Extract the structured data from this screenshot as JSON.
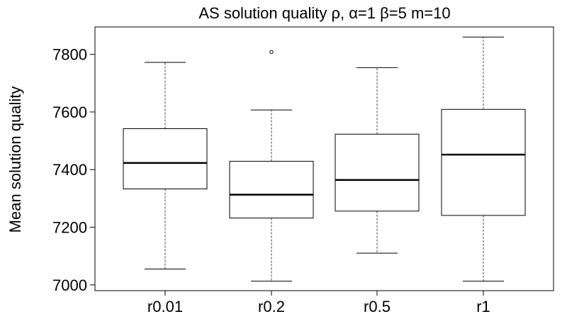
{
  "chart_data": {
    "type": "boxplot",
    "title": "AS solution quality ρ, α=1 β=5 m=10",
    "xlabel": "",
    "ylabel": "Mean solution quality",
    "ylim": [
      6980,
      7895
    ],
    "y_ticks": [
      7000,
      7200,
      7400,
      7600,
      7800
    ],
    "categories": [
      "r0.01",
      "r0.2",
      "r0.5",
      "r1"
    ],
    "boxes": [
      {
        "label": "r0.01",
        "whisker_low": 7055,
        "q1": 7333,
        "median": 7423,
        "q3": 7542,
        "whisker_high": 7772,
        "outliers": []
      },
      {
        "label": "r0.2",
        "whisker_low": 7013,
        "q1": 7232,
        "median": 7313,
        "q3": 7429,
        "whisker_high": 7607,
        "outliers": [
          7808
        ]
      },
      {
        "label": "r0.5",
        "whisker_low": 7110,
        "q1": 7256,
        "median": 7364,
        "q3": 7523,
        "whisker_high": 7754,
        "outliers": []
      },
      {
        "label": "r1",
        "whisker_low": 7013,
        "q1": 7241,
        "median": 7452,
        "q3": 7609,
        "whisker_high": 7860,
        "outliers": []
      }
    ],
    "grid": false,
    "legend": "none"
  },
  "colors": {
    "box_stroke": "#000000",
    "whisker": "#444444",
    "median": "#000000",
    "frame": "#000000"
  }
}
